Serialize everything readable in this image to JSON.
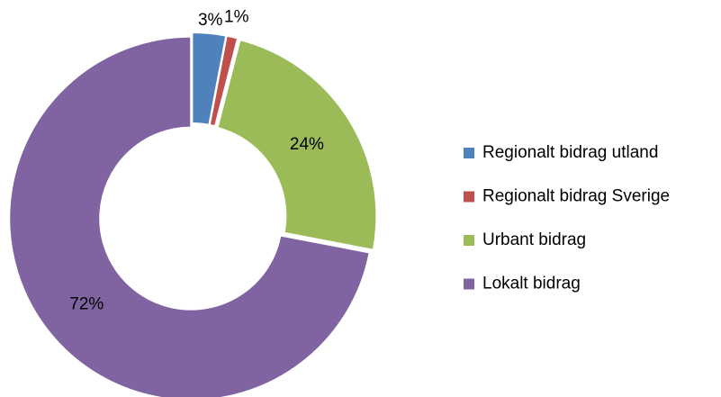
{
  "chart_data": {
    "type": "pie",
    "categories": [
      "Regionalt bidrag utland",
      "Regionalt bidrag Sverige",
      "Urbant bidrag",
      "Lokalt bidrag"
    ],
    "values": [
      3,
      1,
      24,
      72
    ],
    "value_labels": [
      "3%",
      "1%",
      "24%",
      "72%"
    ],
    "colors": [
      "#4f81bd",
      "#c0504d",
      "#9bbb59",
      "#8064a2"
    ],
    "donut": true,
    "legend": "right"
  }
}
